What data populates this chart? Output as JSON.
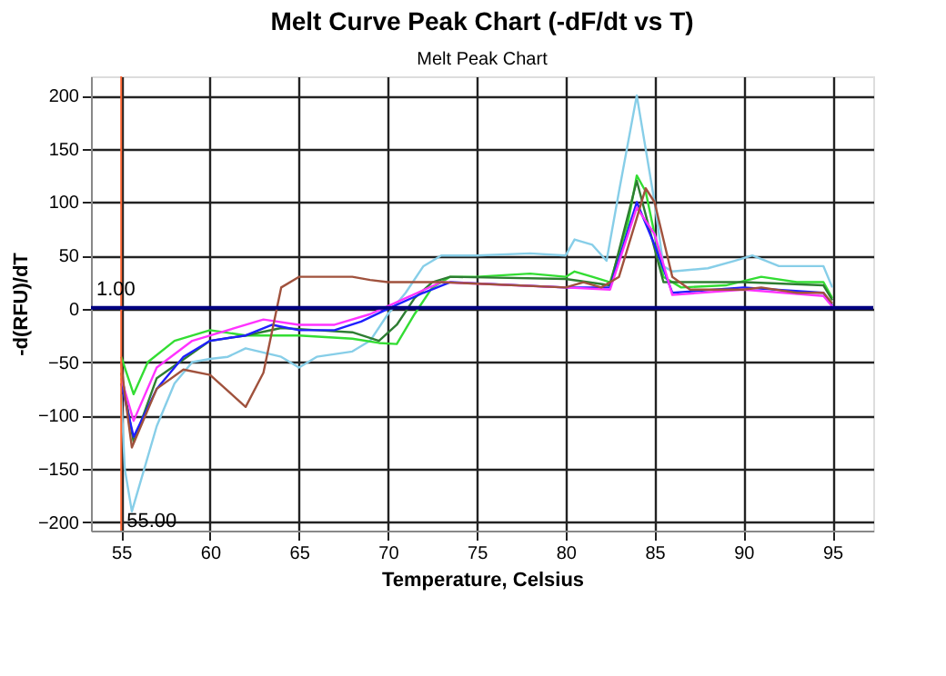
{
  "chart_data": {
    "type": "line",
    "title": "Melt Curve Peak Chart (-dF/dt vs T)",
    "subtitle": "Melt Peak Chart",
    "xlabel": "Temperature, Celsius",
    "ylabel": "-d(RFU)/dT",
    "xlim": [
      53.3,
      97.3
    ],
    "ylim": [
      -208,
      218
    ],
    "xticks": [
      55,
      60,
      65,
      70,
      75,
      80,
      85,
      90,
      95
    ],
    "yticks": [
      -200,
      -150,
      -100,
      -50,
      0,
      50,
      100,
      150,
      200
    ],
    "grid": true,
    "legend": false,
    "marker": "none",
    "line_style": "solid",
    "ref_lines": [
      {
        "axis": "x",
        "value": 55,
        "label": "55.00",
        "color": "#ff6633"
      },
      {
        "axis": "y",
        "value": 1,
        "label": "1.00",
        "color": "#000080"
      }
    ],
    "series": [
      {
        "color": "#87cee8",
        "x": [
          55.0,
          55.2,
          55.6,
          57,
          58,
          59,
          60,
          61,
          62,
          64,
          65,
          66,
          68,
          69,
          70,
          71,
          72,
          73,
          75,
          78,
          80,
          80.5,
          81.5,
          82.3,
          83,
          84,
          85,
          85.5,
          86,
          88,
          89.5,
          90.5,
          92,
          94.5,
          95
        ],
        "values": [
          -80,
          -150,
          -190,
          -110,
          -70,
          -50,
          -47,
          -45,
          -37,
          -45,
          -55,
          -45,
          -40,
          -30,
          -5,
          15,
          40,
          50,
          50,
          52,
          50,
          65,
          60,
          45,
          110,
          200,
          100,
          40,
          35,
          38,
          45,
          50,
          40,
          40,
          20
        ]
      },
      {
        "color": "#33dd33",
        "x": [
          55.0,
          55.7,
          56.5,
          58,
          60,
          62,
          65,
          68,
          69.5,
          70.5,
          71.5,
          72.5,
          73.5,
          75,
          78,
          80,
          80.5,
          81.5,
          82.5,
          83.5,
          84,
          84.5,
          85.5,
          86.5,
          89,
          91,
          93,
          94.5,
          95
        ],
        "values": [
          -45,
          -80,
          -50,
          -30,
          -20,
          -25,
          -25,
          -28,
          -32,
          -33,
          -5,
          20,
          30,
          30,
          33,
          30,
          35,
          30,
          25,
          80,
          125,
          110,
          30,
          20,
          22,
          30,
          25,
          25,
          10
        ]
      },
      {
        "color": "#2e7d32",
        "x": [
          55.0,
          55.7,
          57,
          60,
          62,
          64,
          66,
          68,
          69.5,
          70.5,
          71.5,
          72.5,
          73.5,
          80,
          82.5,
          84,
          85.5,
          90,
          94.5,
          95
        ],
        "values": [
          -60,
          -125,
          -65,
          -30,
          -25,
          -18,
          -20,
          -22,
          -30,
          -15,
          10,
          25,
          30,
          28,
          22,
          120,
          25,
          25,
          22,
          8
        ]
      },
      {
        "color": "#1f1fff",
        "x": [
          55.0,
          55.7,
          57,
          58.5,
          60,
          62,
          63.5,
          65,
          67,
          68.5,
          70,
          72,
          73.5,
          80,
          82.5,
          84,
          85,
          86,
          90,
          94.5,
          95
        ],
        "values": [
          -70,
          -120,
          -75,
          -45,
          -30,
          -25,
          -15,
          -20,
          -20,
          -12,
          0,
          15,
          25,
          20,
          20,
          100,
          60,
          15,
          20,
          15,
          3
        ]
      },
      {
        "color": "#ff33ff",
        "x": [
          55.0,
          55.7,
          57,
          59,
          61,
          63,
          65,
          67,
          69,
          71,
          73,
          80,
          82.5,
          84,
          85,
          86,
          90,
          94.5,
          95
        ],
        "values": [
          -65,
          -105,
          -55,
          -30,
          -20,
          -10,
          -15,
          -15,
          -5,
          10,
          25,
          20,
          18,
          95,
          70,
          13,
          18,
          12,
          2
        ]
      },
      {
        "color": "#a0523d",
        "x": [
          55.0,
          55.2,
          55.6,
          57,
          58.5,
          60,
          62,
          63,
          64,
          65,
          68,
          69,
          70,
          73,
          80,
          81,
          82,
          83,
          84,
          84.5,
          85,
          86,
          87,
          90,
          91,
          93,
          94.5,
          95
        ],
        "values": [
          -50,
          -80,
          -130,
          -75,
          -57,
          -62,
          -92,
          -60,
          20,
          30,
          30,
          27,
          25,
          25,
          20,
          25,
          20,
          30,
          85,
          113,
          100,
          30,
          18,
          18,
          20,
          15,
          15,
          5
        ]
      }
    ]
  }
}
